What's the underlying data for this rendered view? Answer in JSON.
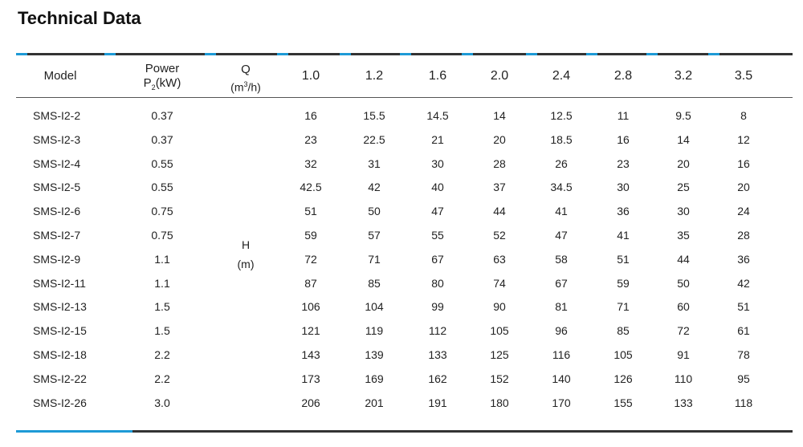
{
  "title": "Technical Data",
  "header": {
    "model": "Model",
    "power_line1": "Power",
    "power_p": "P",
    "power_sub": "2",
    "power_unit": "(kW)",
    "q_label": "Q",
    "q_unit_pre": "(m",
    "q_unit_sup": "3",
    "q_unit_post": "/h)",
    "flows": [
      "1.0",
      "1.2",
      "1.6",
      "2.0",
      "2.4",
      "2.8",
      "3.2",
      "3.5"
    ]
  },
  "head_label": {
    "line1": "H",
    "line2": "(m)"
  },
  "rows": [
    {
      "model": "SMS-I2-2",
      "power": "0.37",
      "values": [
        "16",
        "15.5",
        "14.5",
        "14",
        "12.5",
        "11",
        "9.5",
        "8"
      ]
    },
    {
      "model": "SMS-I2-3",
      "power": "0.37",
      "values": [
        "23",
        "22.5",
        "21",
        "20",
        "18.5",
        "16",
        "14",
        "12"
      ]
    },
    {
      "model": "SMS-I2-4",
      "power": "0.55",
      "values": [
        "32",
        "31",
        "30",
        "28",
        "26",
        "23",
        "20",
        "16"
      ]
    },
    {
      "model": "SMS-I2-5",
      "power": "0.55",
      "values": [
        "42.5",
        "42",
        "40",
        "37",
        "34.5",
        "30",
        "25",
        "20"
      ]
    },
    {
      "model": "SMS-I2-6",
      "power": "0.75",
      "values": [
        "51",
        "50",
        "47",
        "44",
        "41",
        "36",
        "30",
        "24"
      ]
    },
    {
      "model": "SMS-I2-7",
      "power": "0.75",
      "values": [
        "59",
        "57",
        "55",
        "52",
        "47",
        "41",
        "35",
        "28"
      ]
    },
    {
      "model": "SMS-I2-9",
      "power": "1.1",
      "values": [
        "72",
        "71",
        "67",
        "63",
        "58",
        "51",
        "44",
        "36"
      ]
    },
    {
      "model": "SMS-I2-11",
      "power": "1.1",
      "values": [
        "87",
        "85",
        "80",
        "74",
        "67",
        "59",
        "50",
        "42"
      ]
    },
    {
      "model": "SMS-I2-13",
      "power": "1.5",
      "values": [
        "106",
        "104",
        "99",
        "90",
        "81",
        "71",
        "60",
        "51"
      ]
    },
    {
      "model": "SMS-I2-15",
      "power": "1.5",
      "values": [
        "121",
        "119",
        "112",
        "105",
        "96",
        "85",
        "72",
        "61"
      ]
    },
    {
      "model": "SMS-I2-18",
      "power": "2.2",
      "values": [
        "143",
        "139",
        "133",
        "125",
        "116",
        "105",
        "91",
        "78"
      ]
    },
    {
      "model": "SMS-I2-22",
      "power": "2.2",
      "values": [
        "173",
        "169",
        "162",
        "152",
        "140",
        "126",
        "110",
        "95"
      ]
    },
    {
      "model": "SMS-I2-26",
      "power": "3.0",
      "values": [
        "206",
        "201",
        "191",
        "180",
        "170",
        "155",
        "133",
        "118"
      ]
    }
  ],
  "colors": {
    "accent": "#1d9ad6",
    "rule": "#333333",
    "text": "#222222"
  }
}
